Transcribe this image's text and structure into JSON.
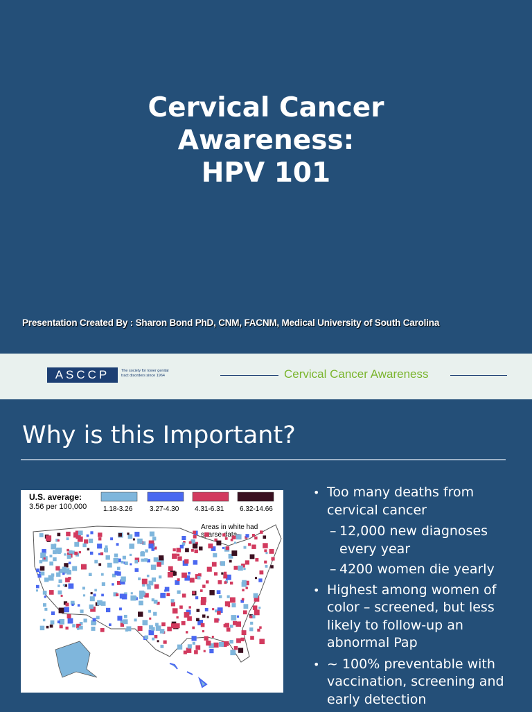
{
  "slide1": {
    "title_lines": [
      "Cervical Cancer",
      "Awareness:",
      "HPV 101"
    ],
    "credit": "Presentation Created By : Sharon Bond PhD, CNM, FACNM, Medical University of South Carolina"
  },
  "band": {
    "logo_text": "ASCCP",
    "logo_tagline": "The society for lower genital tract disorders since 1964",
    "title": "Cervical Cancer Awareness"
  },
  "slide2": {
    "heading": "Why is this Important?",
    "map": {
      "avg_label_1": "U.S. average:",
      "avg_label_2": "3.56 per 100,000",
      "legend": [
        {
          "label": "1.18-3.26",
          "color": "#7fb6dc"
        },
        {
          "label": "3.27-4.30",
          "color": "#4a68f0"
        },
        {
          "label": "4.31-6.31",
          "color": "#d23a5e"
        },
        {
          "label": "6.32-14.66",
          "color": "#3a1020"
        }
      ],
      "note_1": "Areas in white had",
      "note_2": "sparse data"
    },
    "bullets": [
      {
        "text": "Too many deaths from cervical cancer",
        "subs": [
          "12,000 new diagnoses every year",
          "4200 women die yearly"
        ]
      },
      {
        "text": "Highest among women of color – screened, but less likely to follow-up an abnormal Pap",
        "subs": []
      },
      {
        "text": "~ 100% preventable with vaccination, screening and early detection",
        "subs": []
      }
    ]
  }
}
